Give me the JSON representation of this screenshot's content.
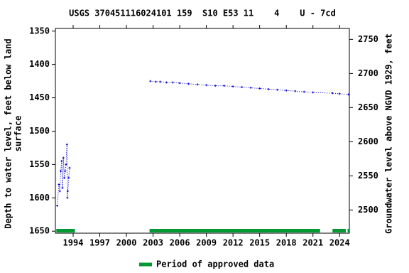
{
  "chart_data": {
    "type": "line",
    "title": "USGS 370451116024101 159  S10 E53 11    4    U - 7cd",
    "ylabel": [
      "Depth to water level, feet below land",
      "surface"
    ],
    "y2label": "Groundwater level above NGVD 1929, feet",
    "xlim": [
      1992,
      2025.1
    ],
    "xticks": [
      1994,
      1997,
      2000,
      2003,
      2006,
      2009,
      2012,
      2015,
      2018,
      2021,
      2024
    ],
    "ylim": [
      1653,
      1346
    ],
    "yticks": [
      1350,
      1400,
      1450,
      1500,
      1550,
      1600,
      1650
    ],
    "y2lim": [
      2466,
      2766
    ],
    "y2ticks": [
      2500,
      2550,
      2600,
      2650,
      2700,
      2750
    ],
    "series": [
      {
        "color": "#0000cc",
        "x": [
          1992.2,
          1992.4,
          1992.5,
          1992.6,
          1992.7,
          1992.8,
          1992.9,
          1993.0,
          1993.1,
          1993.2,
          1993.3,
          1993.35,
          1993.4,
          1993.5,
          1993.6,
          null,
          2002.7,
          2003.3,
          2003.8,
          2004.5,
          2005.2,
          2006,
          2007,
          2008,
          2009,
          2010,
          2011,
          2012,
          2013,
          2014,
          2015,
          2016,
          2017,
          2018,
          2019,
          2020,
          2021,
          2023.2,
          2024,
          2025
        ],
        "values": [
          1612,
          1580,
          1590,
          1560,
          1545,
          1585,
          1540,
          1570,
          1560,
          1550,
          1520,
          1600,
          1590,
          1570,
          1555,
          null,
          1425,
          1426,
          1426,
          1427,
          1427,
          1428,
          1429,
          1430,
          1431,
          1432,
          1432,
          1433,
          1434,
          1435,
          1436,
          1437,
          1438,
          1439,
          1440,
          1441,
          1442,
          1443,
          1444,
          1445
        ]
      }
    ],
    "approved": {
      "label": "Period of approved data",
      "color": "#009933",
      "periods": [
        [
          1992.1,
          1994.2
        ],
        [
          2002.6,
          2021.8
        ],
        [
          2023.2,
          2024.7
        ],
        [
          2024.9,
          2025.1
        ]
      ]
    }
  }
}
